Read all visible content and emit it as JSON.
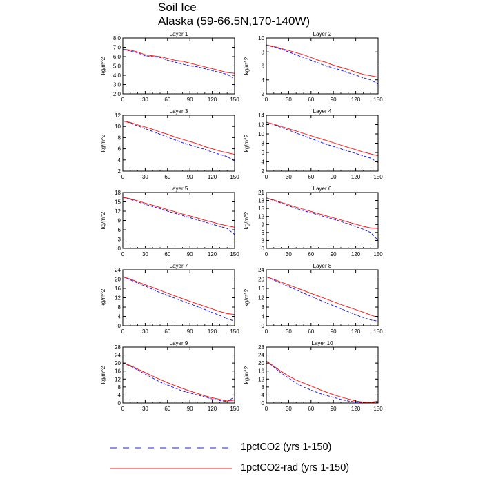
{
  "figure": {
    "title": "Soil Ice",
    "subtitle": "Alaska (59-66.5N,170-140W)"
  },
  "legend": [
    {
      "label": "1pctCO2 (yrs 1-150)",
      "color": "#2222dd",
      "dash": true
    },
    {
      "label": "1pctCO2-rad (yrs 1-150)",
      "color": "#ee2222",
      "dash": false
    }
  ],
  "chart_data": [
    {
      "type": "line",
      "title": "Layer 1",
      "ylabel": "kg/m^2",
      "xlim": [
        0,
        150
      ],
      "ylim": [
        2,
        8
      ],
      "xticks": [
        "0",
        "30",
        "60",
        "90",
        "120",
        "150"
      ],
      "yticks": [
        "2.0",
        "3.0",
        "4.0",
        "5.0",
        "6.0",
        "7.0",
        "8.0"
      ],
      "x": [
        0,
        10,
        20,
        30,
        40,
        50,
        60,
        70,
        80,
        90,
        100,
        110,
        120,
        130,
        140,
        150
      ],
      "series": [
        {
          "name": "1pctCO2 (yrs 1-150)",
          "values": [
            6.8,
            6.6,
            6.4,
            6.1,
            6.0,
            5.9,
            5.6,
            5.4,
            5.2,
            5.0,
            4.9,
            4.7,
            4.5,
            4.3,
            4.1,
            3.6
          ]
        },
        {
          "name": "1pctCO2-rad (yrs 1-150)",
          "values": [
            6.8,
            6.7,
            6.5,
            6.2,
            6.1,
            6.0,
            5.8,
            5.6,
            5.5,
            5.3,
            5.1,
            4.9,
            4.7,
            4.5,
            4.3,
            4.2
          ]
        }
      ]
    },
    {
      "type": "line",
      "title": "Layer 2",
      "ylabel": "kg/m^2",
      "xlim": [
        0,
        150
      ],
      "ylim": [
        2,
        10
      ],
      "xticks": [
        "0",
        "30",
        "60",
        "90",
        "120",
        "150"
      ],
      "yticks": [
        "2",
        "4",
        "6",
        "8",
        "10"
      ],
      "x": [
        0,
        10,
        20,
        30,
        40,
        50,
        60,
        70,
        80,
        90,
        100,
        110,
        120,
        130,
        140,
        150
      ],
      "series": [
        {
          "name": "1pctCO2 (yrs 1-150)",
          "values": [
            9.0,
            8.7,
            8.4,
            8.0,
            7.6,
            7.2,
            6.8,
            6.4,
            6.0,
            5.7,
            5.4,
            5.0,
            4.7,
            4.3,
            4.0,
            3.4
          ]
        },
        {
          "name": "1pctCO2-rad (yrs 1-150)",
          "values": [
            9.0,
            8.8,
            8.5,
            8.2,
            7.9,
            7.6,
            7.2,
            6.8,
            6.5,
            6.1,
            5.8,
            5.5,
            5.1,
            4.8,
            4.6,
            4.4
          ]
        }
      ]
    },
    {
      "type": "line",
      "title": "Layer 3",
      "ylabel": "kg/m^2",
      "xlim": [
        0,
        150
      ],
      "ylim": [
        2,
        12
      ],
      "xticks": [
        "0",
        "30",
        "60",
        "90",
        "120",
        "150"
      ],
      "yticks": [
        "2",
        "4",
        "6",
        "8",
        "10",
        "12"
      ],
      "x": [
        0,
        10,
        20,
        30,
        40,
        50,
        60,
        70,
        80,
        90,
        100,
        110,
        120,
        130,
        140,
        150
      ],
      "series": [
        {
          "name": "1pctCO2 (yrs 1-150)",
          "values": [
            11.0,
            10.6,
            10.1,
            9.6,
            9.1,
            8.6,
            8.1,
            7.6,
            7.1,
            6.7,
            6.3,
            5.9,
            5.4,
            5.0,
            4.6,
            3.8
          ]
        },
        {
          "name": "1pctCO2-rad (yrs 1-150)",
          "values": [
            11.0,
            10.7,
            10.3,
            9.9,
            9.5,
            9.0,
            8.6,
            8.1,
            7.7,
            7.3,
            6.9,
            6.4,
            6.0,
            5.6,
            5.3,
            5.0
          ]
        }
      ]
    },
    {
      "type": "line",
      "title": "Layer 4",
      "ylabel": "kg/m^2",
      "xlim": [
        0,
        150
      ],
      "ylim": [
        2,
        14
      ],
      "xticks": [
        "0",
        "30",
        "60",
        "90",
        "120",
        "150"
      ],
      "yticks": [
        "2",
        "4",
        "6",
        "8",
        "10",
        "12",
        "14"
      ],
      "x": [
        0,
        10,
        20,
        30,
        40,
        50,
        60,
        70,
        80,
        90,
        100,
        110,
        120,
        130,
        140,
        150
      ],
      "series": [
        {
          "name": "1pctCO2 (yrs 1-150)",
          "values": [
            12.5,
            12.0,
            11.4,
            10.8,
            10.2,
            9.6,
            9.0,
            8.4,
            7.8,
            7.3,
            6.8,
            6.3,
            5.8,
            5.3,
            4.8,
            3.8
          ]
        },
        {
          "name": "1pctCO2-rad (yrs 1-150)",
          "values": [
            12.5,
            12.1,
            11.6,
            11.1,
            10.6,
            10.1,
            9.6,
            9.1,
            8.6,
            8.1,
            7.6,
            7.1,
            6.6,
            6.1,
            5.7,
            5.3
          ]
        }
      ]
    },
    {
      "type": "line",
      "title": "Layer 5",
      "ylabel": "kg/m^2",
      "xlim": [
        0,
        150
      ],
      "ylim": [
        0,
        18
      ],
      "xticks": [
        "0",
        "30",
        "60",
        "90",
        "120",
        "150"
      ],
      "yticks": [
        "0",
        "3",
        "6",
        "9",
        "12",
        "15",
        "18"
      ],
      "x": [
        0,
        10,
        20,
        30,
        40,
        50,
        60,
        70,
        80,
        90,
        100,
        110,
        120,
        130,
        140,
        150
      ],
      "series": [
        {
          "name": "1pctCO2 (yrs 1-150)",
          "values": [
            16.5,
            15.8,
            15.0,
            14.2,
            13.5,
            12.8,
            12.0,
            11.3,
            10.6,
            9.9,
            9.2,
            8.5,
            7.8,
            7.1,
            6.4,
            4.5
          ]
        },
        {
          "name": "1pctCO2-rad (yrs 1-150)",
          "values": [
            16.5,
            16.0,
            15.3,
            14.6,
            13.9,
            13.2,
            12.5,
            11.8,
            11.1,
            10.5,
            9.8,
            9.1,
            8.5,
            7.8,
            7.3,
            6.8
          ]
        }
      ]
    },
    {
      "type": "line",
      "title": "Layer 6",
      "ylabel": "kg/m^2",
      "xlim": [
        0,
        150
      ],
      "ylim": [
        0,
        21
      ],
      "xticks": [
        "0",
        "30",
        "60",
        "90",
        "120",
        "150"
      ],
      "yticks": [
        "0",
        "3",
        "6",
        "9",
        "12",
        "15",
        "18",
        "21"
      ],
      "x": [
        0,
        10,
        20,
        30,
        40,
        50,
        60,
        70,
        80,
        90,
        100,
        110,
        120,
        130,
        140,
        150
      ],
      "series": [
        {
          "name": "1pctCO2 (yrs 1-150)",
          "values": [
            19.0,
            18.0,
            17.0,
            16.0,
            15.0,
            14.2,
            13.4,
            12.6,
            11.8,
            11.0,
            10.1,
            9.2,
            8.2,
            7.2,
            6.0,
            3.0
          ]
        },
        {
          "name": "1pctCO2-rad (yrs 1-150)",
          "values": [
            19.0,
            18.2,
            17.3,
            16.4,
            15.5,
            14.7,
            13.9,
            13.1,
            12.3,
            11.5,
            10.7,
            9.9,
            9.1,
            8.3,
            7.7,
            7.5
          ]
        }
      ]
    },
    {
      "type": "line",
      "title": "Layer 7",
      "ylabel": "kg/m^2",
      "xlim": [
        0,
        150
      ],
      "ylim": [
        0,
        24
      ],
      "xticks": [
        "0",
        "30",
        "60",
        "90",
        "120",
        "150"
      ],
      "yticks": [
        "0",
        "4",
        "8",
        "12",
        "16",
        "20",
        "24"
      ],
      "x": [
        0,
        10,
        20,
        30,
        40,
        50,
        60,
        70,
        80,
        90,
        100,
        110,
        120,
        130,
        140,
        150
      ],
      "series": [
        {
          "name": "1pctCO2 (yrs 1-150)",
          "values": [
            21.0,
            19.7,
            18.3,
            17.0,
            15.6,
            14.2,
            13.0,
            11.8,
            10.6,
            9.4,
            8.2,
            7.0,
            5.7,
            4.4,
            3.0,
            2.0
          ]
        },
        {
          "name": "1pctCO2-rad (yrs 1-150)",
          "values": [
            21.0,
            20.0,
            18.8,
            17.6,
            16.4,
            15.2,
            14.0,
            12.8,
            11.6,
            10.5,
            9.4,
            8.3,
            7.2,
            6.1,
            5.2,
            4.8
          ]
        }
      ]
    },
    {
      "type": "line",
      "title": "Layer 8",
      "ylabel": "kg/m^2",
      "xlim": [
        0,
        150
      ],
      "ylim": [
        0,
        24
      ],
      "xticks": [
        "0",
        "30",
        "60",
        "90",
        "120",
        "150"
      ],
      "yticks": [
        "0",
        "4",
        "8",
        "12",
        "16",
        "20",
        "24"
      ],
      "x": [
        0,
        10,
        20,
        30,
        40,
        50,
        60,
        70,
        80,
        90,
        100,
        110,
        120,
        130,
        140,
        150
      ],
      "series": [
        {
          "name": "1pctCO2 (yrs 1-150)",
          "values": [
            21.0,
            19.6,
            18.2,
            16.8,
            15.4,
            14.0,
            12.6,
            11.2,
            9.9,
            8.6,
            7.3,
            6.0,
            4.7,
            3.5,
            2.5,
            2.0
          ]
        },
        {
          "name": "1pctCO2-rad (yrs 1-150)",
          "values": [
            21.0,
            19.9,
            18.7,
            17.5,
            16.3,
            15.1,
            13.9,
            12.7,
            11.5,
            10.3,
            9.1,
            8.0,
            6.9,
            5.8,
            4.6,
            3.5
          ]
        }
      ]
    },
    {
      "type": "line",
      "title": "Layer 9",
      "ylabel": "kg/m^2",
      "xlim": [
        0,
        150
      ],
      "ylim": [
        0,
        28
      ],
      "xticks": [
        "0",
        "30",
        "60",
        "90",
        "120",
        "150"
      ],
      "yticks": [
        "0",
        "4",
        "8",
        "12",
        "16",
        "20",
        "24",
        "28"
      ],
      "x": [
        0,
        10,
        20,
        30,
        40,
        50,
        60,
        70,
        80,
        90,
        100,
        110,
        120,
        130,
        140,
        150
      ],
      "series": [
        {
          "name": "1pctCO2 (yrs 1-150)",
          "values": [
            20.0,
            18.5,
            16.5,
            14.5,
            12.5,
            10.5,
            9.0,
            7.5,
            6.0,
            5.0,
            4.0,
            3.0,
            2.0,
            1.2,
            0.8,
            3.0
          ]
        },
        {
          "name": "1pctCO2-rad (yrs 1-150)",
          "values": [
            20.0,
            18.8,
            17.0,
            15.2,
            13.5,
            11.8,
            10.2,
            8.7,
            7.3,
            6.0,
            4.8,
            3.6,
            2.6,
            1.8,
            1.0,
            1.5
          ]
        }
      ]
    },
    {
      "type": "line",
      "title": "Layer 10",
      "ylabel": "kg/m^2",
      "xlim": [
        0,
        150
      ],
      "ylim": [
        0,
        28
      ],
      "xticks": [
        "0",
        "30",
        "60",
        "90",
        "120",
        "150"
      ],
      "yticks": [
        "0",
        "4",
        "8",
        "12",
        "16",
        "20",
        "24",
        "28"
      ],
      "x": [
        0,
        10,
        20,
        30,
        40,
        50,
        60,
        70,
        80,
        90,
        100,
        110,
        120,
        130,
        140,
        150
      ],
      "series": [
        {
          "name": "1pctCO2 (yrs 1-150)",
          "values": [
            21.0,
            18.0,
            15.0,
            12.5,
            10.0,
            8.0,
            6.5,
            5.0,
            3.8,
            2.8,
            1.8,
            1.0,
            0.5,
            0.3,
            0.2,
            0.2
          ]
        },
        {
          "name": "1pctCO2-rad (yrs 1-150)",
          "values": [
            21.0,
            18.5,
            15.8,
            13.5,
            11.5,
            10.0,
            8.5,
            7.0,
            5.5,
            4.2,
            3.0,
            2.0,
            1.0,
            0.5,
            0.3,
            1.0
          ]
        }
      ]
    }
  ]
}
